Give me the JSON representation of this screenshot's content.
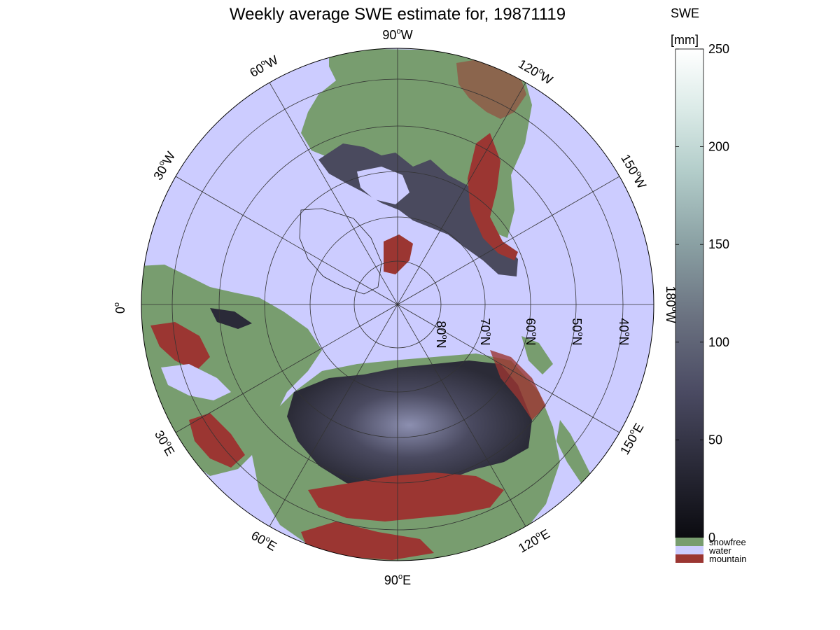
{
  "title": "Weekly average SWE estimate for, 19871119",
  "colorbar": {
    "title": "SWE",
    "unit": "[mm]",
    "ticks": [
      0,
      50,
      100,
      150,
      200,
      250
    ],
    "range": [
      0,
      250
    ],
    "gradient_colors": [
      "#0b0b10",
      "#2a2a38",
      "#4b4b63",
      "#6a7180",
      "#8aa0a3",
      "#b3cdca",
      "#dcebe8",
      "#ffffff"
    ]
  },
  "legend": [
    {
      "label": "snowfree",
      "color": "#789d6f"
    },
    {
      "label": "water",
      "color": "#ccccff"
    },
    {
      "label": "mountain",
      "color": "#9b3632"
    }
  ],
  "map": {
    "projection": "north-polar-stereographic",
    "ocean_color": "#ccccff",
    "land_color": "#789d6f",
    "snow_color": "#353544",
    "mountain_color": "#9b3632",
    "meridian_labels": [
      {
        "text": "90",
        "suffix": "W"
      },
      {
        "text": "120",
        "suffix": "W"
      },
      {
        "text": "150",
        "suffix": "W"
      },
      {
        "text": "180",
        "suffix": "W"
      },
      {
        "text": "150",
        "suffix": "E"
      },
      {
        "text": "120",
        "suffix": "E"
      },
      {
        "text": "90",
        "suffix": "E"
      },
      {
        "text": "60",
        "suffix": "E"
      },
      {
        "text": "30",
        "suffix": "E"
      },
      {
        "text": "0",
        "suffix": ""
      },
      {
        "text": "30",
        "suffix": "W"
      },
      {
        "text": "60",
        "suffix": "W"
      }
    ],
    "parallel_labels": [
      {
        "text": "80",
        "suffix": "N"
      },
      {
        "text": "70",
        "suffix": "N"
      },
      {
        "text": "60",
        "suffix": "N"
      },
      {
        "text": "50",
        "suffix": "N"
      },
      {
        "text": "40",
        "suffix": "N"
      }
    ]
  }
}
